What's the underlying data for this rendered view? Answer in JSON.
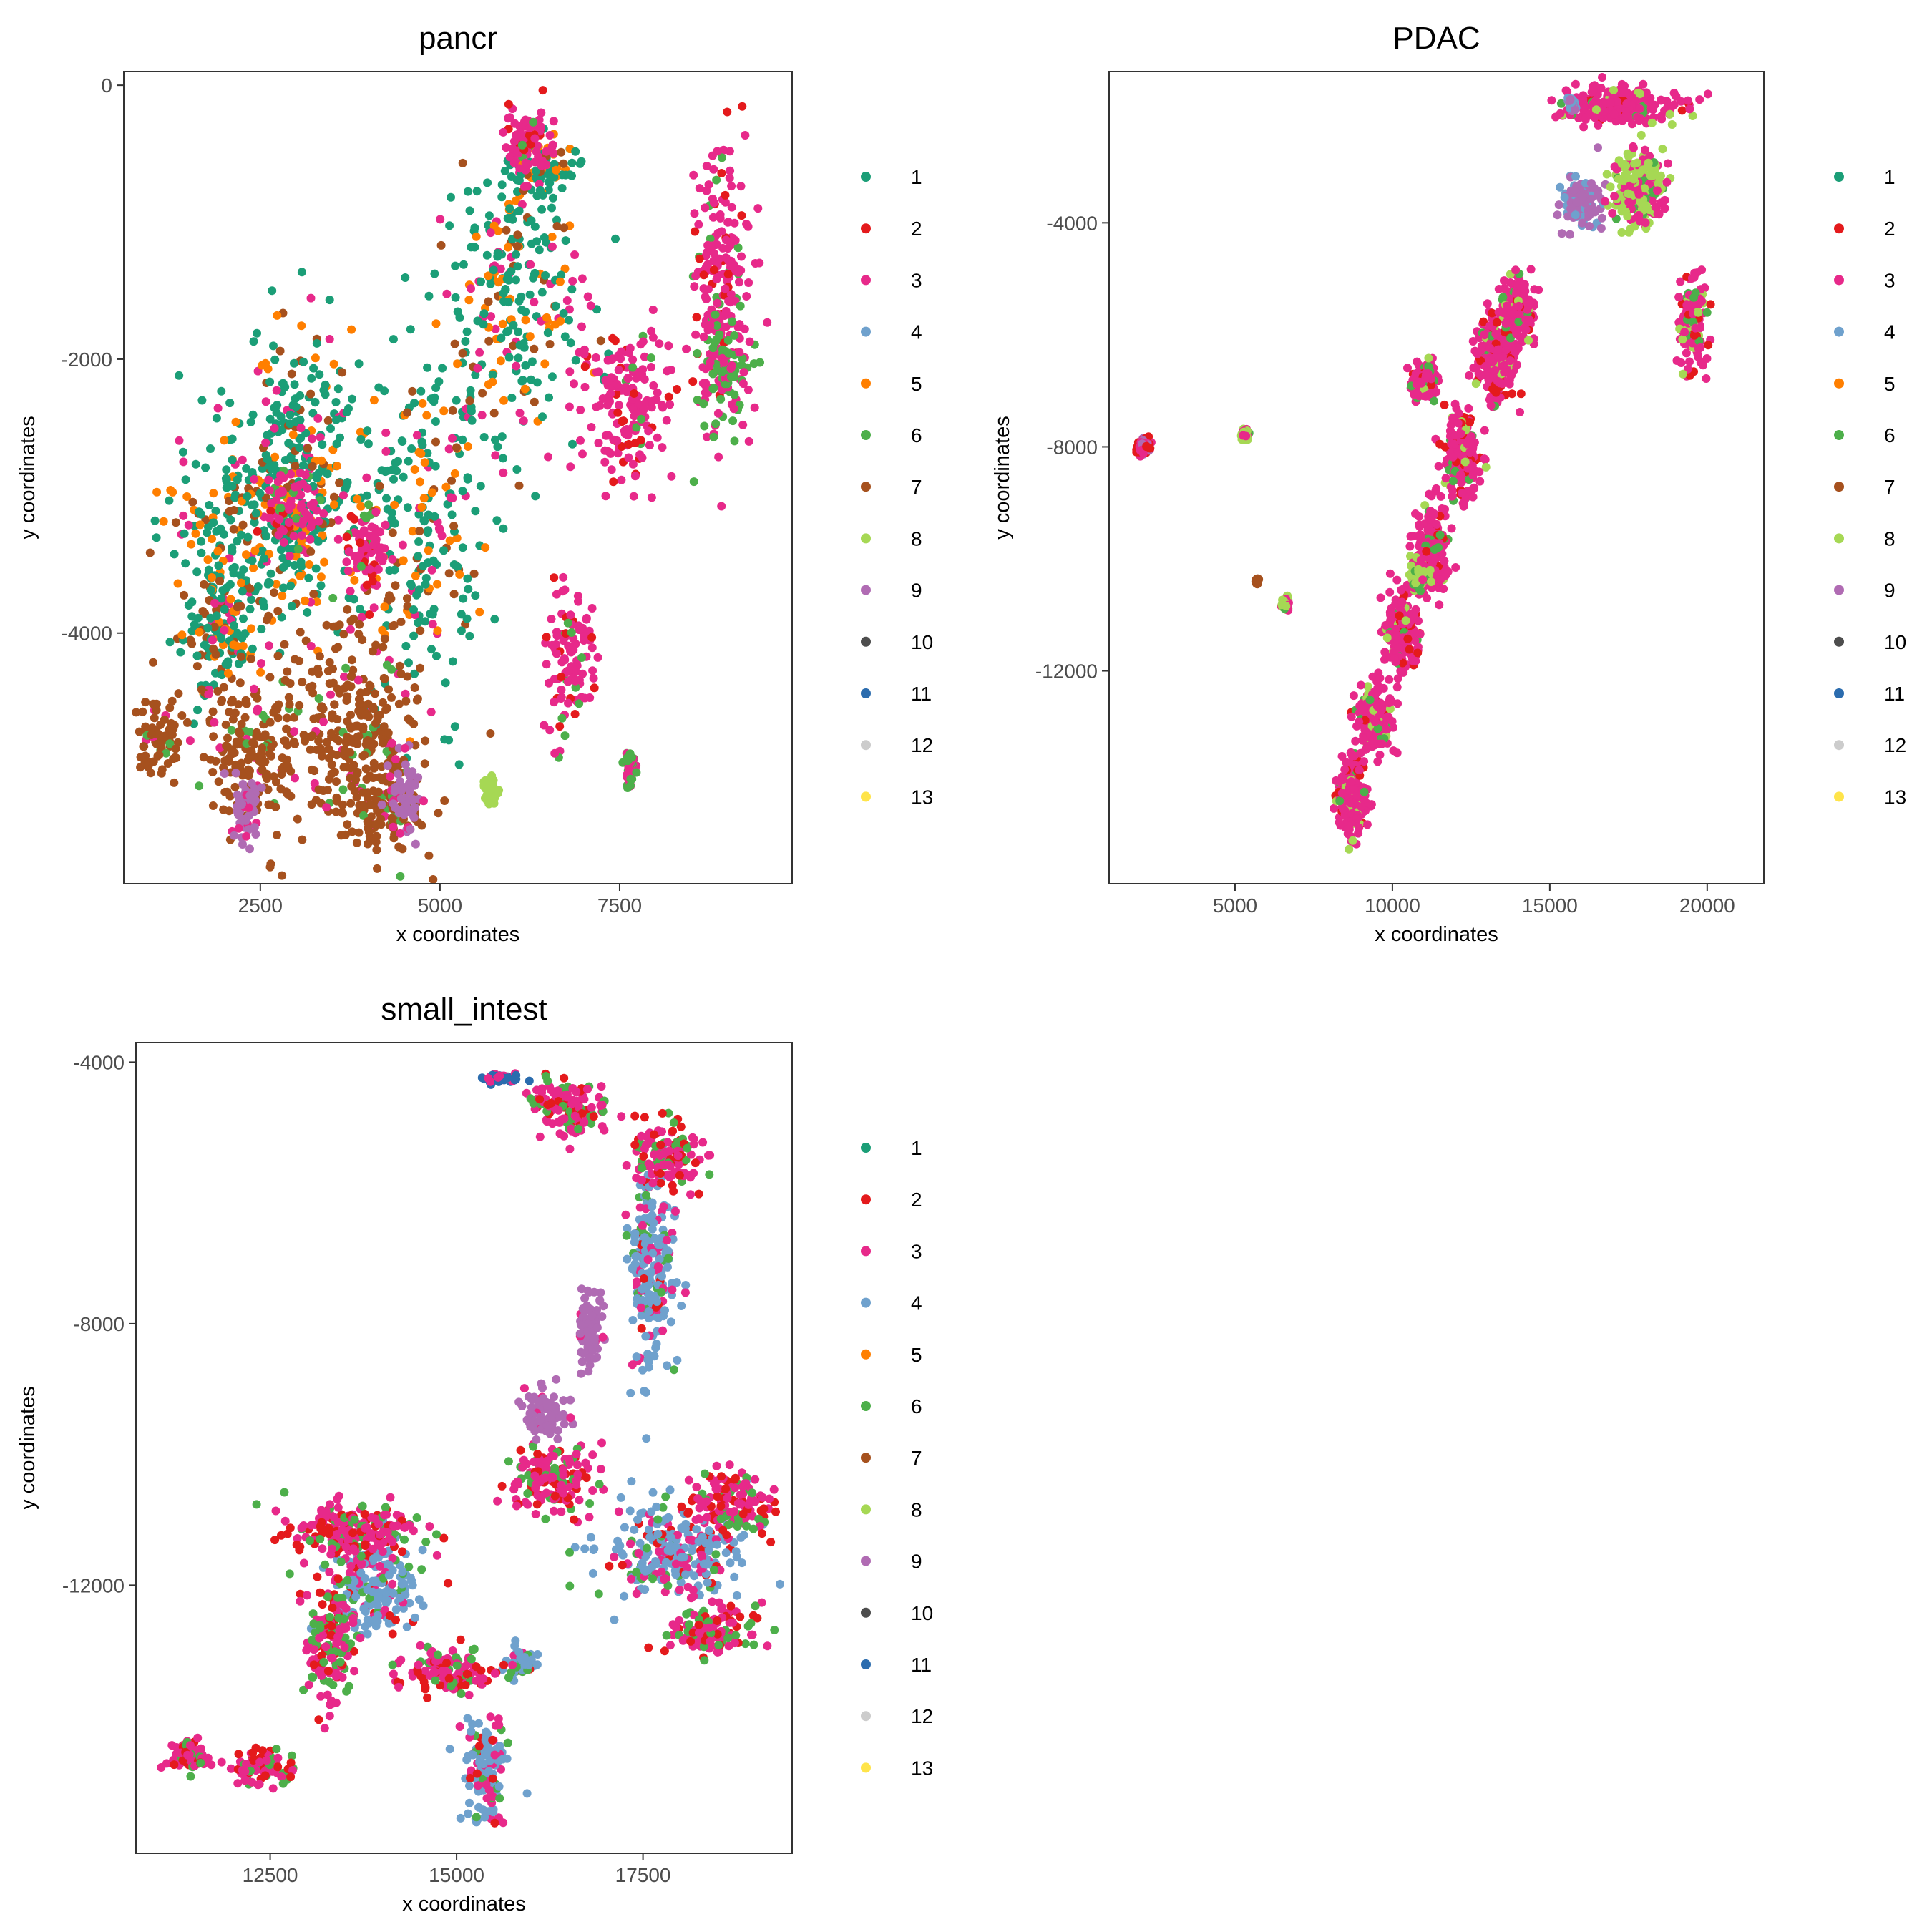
{
  "figure": {
    "legend_colors": [
      "#1b9e77",
      "#e41a1c",
      "#e7298a",
      "#6fa1cd",
      "#ff7f00",
      "#4daf4a",
      "#a6511e",
      "#a6d854",
      "#b06bb3",
      "#4d4d4d",
      "#2b6cae",
      "#cccccc",
      "#ffe44a"
    ],
    "legend_labels": [
      "1",
      "2",
      "3",
      "4",
      "5",
      "6",
      "7",
      "8",
      "9",
      "10",
      "11",
      "12",
      "13"
    ]
  },
  "chart_data": [
    {
      "type": "scatter",
      "title": "pancr",
      "xlabel": "x coordinates",
      "ylabel": "y coordinates",
      "xlim": [
        600,
        9900
      ],
      "ylim": [
        -5830,
        100
      ],
      "xticks": [
        2500,
        5000,
        7500
      ],
      "xtick_labels": [
        "2500",
        "5000",
        "7500"
      ],
      "yticks": [
        0,
        -2000,
        -4000
      ],
      "ytick_labels": [
        "0",
        "-2000",
        "-4000"
      ],
      "grid": false,
      "legend": "right",
      "clusters": [
        {
          "name": "1",
          "mix": [
            {
              "c": 1,
              "w": 0.55
            },
            {
              "c": 5,
              "w": 0.18
            },
            {
              "c": 3,
              "w": 0.12
            },
            {
              "c": 7,
              "w": 0.15
            }
          ],
          "regions": [
            [
              2300,
              -3100,
              1100,
              700
            ],
            [
              3100,
              -2900,
              600,
              1000
            ],
            [
              4700,
              -3300,
              900,
              1200
            ],
            [
              6000,
              -1600,
              900,
              900
            ],
            [
              6400,
              -600,
              400,
              250
            ],
            [
              1900,
              -4000,
              500,
              400
            ]
          ]
        },
        {
          "name": "3",
          "mix": [
            {
              "c": 3,
              "w": 0.8
            },
            {
              "c": 2,
              "w": 0.12
            },
            {
              "c": 6,
              "w": 0.08
            }
          ],
          "regions": [
            [
              7600,
              -2300,
              600,
              500
            ],
            [
              8900,
              -1400,
              400,
              900
            ],
            [
              2900,
              -3100,
              300,
              250
            ],
            [
              4000,
              -3400,
              250,
              300
            ],
            [
              6800,
              -4200,
              300,
              500
            ],
            [
              6200,
              -400,
              300,
              200
            ]
          ]
        },
        {
          "name": "7",
          "mix": [
            {
              "c": 7,
              "w": 0.85
            },
            {
              "c": 3,
              "w": 0.08
            },
            {
              "c": 6,
              "w": 0.07
            }
          ],
          "regions": [
            [
              1100,
              -4750,
              300,
              250
            ],
            [
              2400,
              -4850,
              700,
              500
            ],
            [
              3800,
              -4700,
              800,
              700
            ],
            [
              4200,
              -5300,
              500,
              300
            ]
          ]
        },
        {
          "name": "9",
          "mix": [
            {
              "c": 9,
              "w": 0.8
            },
            {
              "c": 3,
              "w": 0.2
            }
          ],
          "regions": [
            [
              2300,
              -5300,
              200,
              200
            ],
            [
              4500,
              -5200,
              200,
              250
            ]
          ]
        },
        {
          "name": "6",
          "mix": [
            {
              "c": 6,
              "w": 0.5
            },
            {
              "c": 3,
              "w": 0.5
            }
          ],
          "regions": [
            [
              9000,
              -2100,
              300,
              400
            ],
            [
              7650,
              -5000,
              80,
              130
            ]
          ]
        },
        {
          "name": "8",
          "mix": [
            {
              "c": 8,
              "w": 1.0
            }
          ],
          "regions": [
            [
              5700,
              -5150,
              100,
              80
            ]
          ]
        }
      ]
    },
    {
      "type": "scatter",
      "title": "PDAC",
      "xlabel": "x coordinates",
      "ylabel": "y coordinates",
      "xlim": [
        1000,
        21800
      ],
      "ylim": [
        -15800,
        -1300
      ],
      "xticks": [
        5000,
        10000,
        15000,
        20000
      ],
      "xtick_labels": [
        "5000",
        "10000",
        "15000",
        "20000"
      ],
      "yticks": [
        -4000,
        -8000,
        -12000
      ],
      "ytick_labels": [
        "-4000",
        "-8000",
        "-12000"
      ],
      "grid": false,
      "legend": "right",
      "clusters": [
        {
          "name": "3",
          "mix": [
            {
              "c": 3,
              "w": 0.78
            },
            {
              "c": 2,
              "w": 0.1
            },
            {
              "c": 8,
              "w": 0.06
            },
            {
              "c": 6,
              "w": 0.06
            }
          ],
          "regions": [
            [
              8700,
              -14200,
              400,
              700
            ],
            [
              9500,
              -12800,
              500,
              600
            ],
            [
              10300,
              -11300,
              500,
              600
            ],
            [
              11300,
              -9800,
              500,
              700
            ],
            [
              12200,
              -8200,
              500,
              700
            ],
            [
              13300,
              -6400,
              600,
              700
            ],
            [
              14000,
              -5500,
              500,
              500
            ],
            [
              11000,
              -6800,
              400,
              300
            ],
            [
              17300,
              -1900,
              1500,
              300
            ],
            [
              19500,
              -5800,
              400,
              700
            ]
          ]
        },
        {
          "name": "9",
          "mix": [
            {
              "c": 9,
              "w": 0.7
            },
            {
              "c": 4,
              "w": 0.3
            }
          ],
          "regions": [
            [
              16000,
              -3600,
              500,
              400
            ],
            [
              15700,
              -1900,
              100,
              120
            ]
          ]
        },
        {
          "name": "8",
          "mix": [
            {
              "c": 8,
              "w": 0.6
            },
            {
              "c": 3,
              "w": 0.3
            },
            {
              "c": 6,
              "w": 0.1
            }
          ],
          "regions": [
            [
              17800,
              -3400,
              700,
              600
            ],
            [
              10900,
              -10300,
              300,
              250
            ],
            [
              5300,
              -7800,
              100,
              100
            ],
            [
              6600,
              -10800,
              100,
              100
            ]
          ]
        },
        {
          "name": "2",
          "mix": [
            {
              "c": 2,
              "w": 0.4
            },
            {
              "c": 3,
              "w": 0.3
            },
            {
              "c": 9,
              "w": 0.3
            }
          ],
          "regions": [
            [
              2100,
              -8000,
              200,
              150
            ]
          ]
        },
        {
          "name": "7",
          "mix": [
            {
              "c": 7,
              "w": 1.0
            }
          ],
          "regions": [
            [
              5700,
              -10400,
              40,
              40
            ]
          ]
        }
      ]
    },
    {
      "type": "scatter",
      "title": "small_intest",
      "xlabel": "x coordinates",
      "ylabel": "y coordinates",
      "xlim": [
        10700,
        19500
      ],
      "ylim": [
        -16100,
        -3700
      ],
      "xticks": [
        12500,
        15000,
        17500
      ],
      "xtick_labels": [
        "12500",
        "15000",
        "17500"
      ],
      "yticks": [
        -4000,
        -8000,
        -12000
      ],
      "ytick_labels": [
        "-4000",
        "-8000",
        "-12000"
      ],
      "grid": false,
      "legend": "right",
      "clusters": [
        {
          "name": "4",
          "mix": [
            {
              "c": 4,
              "w": 0.6
            },
            {
              "c": 3,
              "w": 0.2
            },
            {
              "c": 2,
              "w": 0.1
            },
            {
              "c": 6,
              "w": 0.1
            }
          ],
          "regions": [
            [
              17600,
              -7200,
              300,
              1400
            ],
            [
              17900,
              -11500,
              900,
              700
            ],
            [
              15400,
              -14800,
              300,
              700
            ],
            [
              13900,
              -12000,
              500,
              700
            ],
            [
              15900,
              -13200,
              200,
              200
            ]
          ]
        },
        {
          "name": "3",
          "mix": [
            {
              "c": 3,
              "w": 0.55
            },
            {
              "c": 2,
              "w": 0.25
            },
            {
              "c": 6,
              "w": 0.2
            }
          ],
          "regions": [
            [
              16500,
              -4700,
              500,
              400
            ],
            [
              17800,
              -5400,
              400,
              500
            ],
            [
              16300,
              -10400,
              500,
              500
            ],
            [
              13600,
              -11200,
              800,
              400
            ],
            [
              13300,
              -12800,
              300,
              900
            ],
            [
              14900,
              -13300,
              600,
              300
            ],
            [
              12400,
              -14800,
              400,
              250
            ],
            [
              11400,
              -14600,
              300,
              200
            ],
            [
              18700,
              -10700,
              500,
              400
            ],
            [
              18400,
              -12700,
              500,
              400
            ]
          ]
        },
        {
          "name": "9",
          "mix": [
            {
              "c": 9,
              "w": 0.9
            },
            {
              "c": 3,
              "w": 0.1
            }
          ],
          "regions": [
            [
              16800,
              -8100,
              150,
              600
            ],
            [
              16200,
              -9400,
              250,
              350
            ]
          ]
        },
        {
          "name": "11",
          "mix": [
            {
              "c": 11,
              "w": 0.6
            },
            {
              "c": 3,
              "w": 0.4
            }
          ],
          "regions": [
            [
              15600,
              -4250,
              250,
              80
            ]
          ]
        }
      ]
    }
  ]
}
